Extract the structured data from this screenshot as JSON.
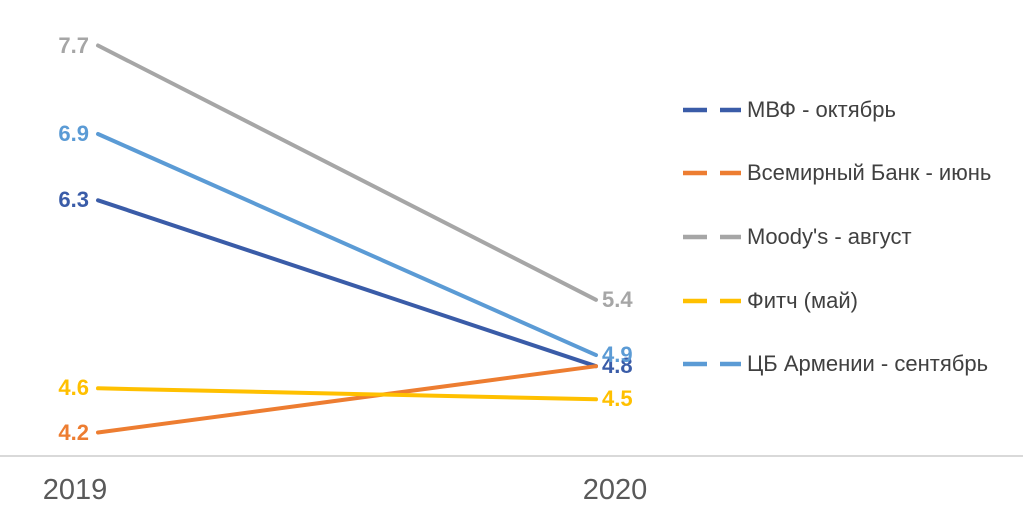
{
  "chart_data": {
    "type": "line",
    "title": "",
    "categories": [
      "2019",
      "2020"
    ],
    "series": [
      {
        "name": "МВФ - октябрь",
        "values": [
          6.3,
          4.8
        ],
        "color": "#3A5CA8",
        "start_label": "6.3",
        "end_label": "4.8"
      },
      {
        "name": "Всемирный Банк - июнь",
        "values": [
          4.2,
          4.8
        ],
        "color": "#ED7D31",
        "start_label": "4.2",
        "end_label": ""
      },
      {
        "name": "Moody's - август",
        "values": [
          7.7,
          5.4
        ],
        "color": "#A6A6A6",
        "start_label": "7.7",
        "end_label": "5.4"
      },
      {
        "name": "Фитч (май)",
        "values": [
          4.6,
          4.5
        ],
        "color": "#FFC000",
        "start_label": "4.6",
        "end_label": "4.5"
      },
      {
        "name": "ЦБ Армении - сентябрь",
        "values": [
          6.9,
          4.9
        ],
        "color": "#5B9BD5",
        "start_label": "6.9",
        "end_label": "4.9"
      }
    ],
    "legend_position": "right",
    "grid": false,
    "y_axis_visible": false,
    "data_labels": "start-and-end"
  },
  "colors": {
    "background": "#FFFFFF",
    "axis_line": "#D9D9D9",
    "x_label_text": "#595959",
    "legend_text": "#404040"
  }
}
